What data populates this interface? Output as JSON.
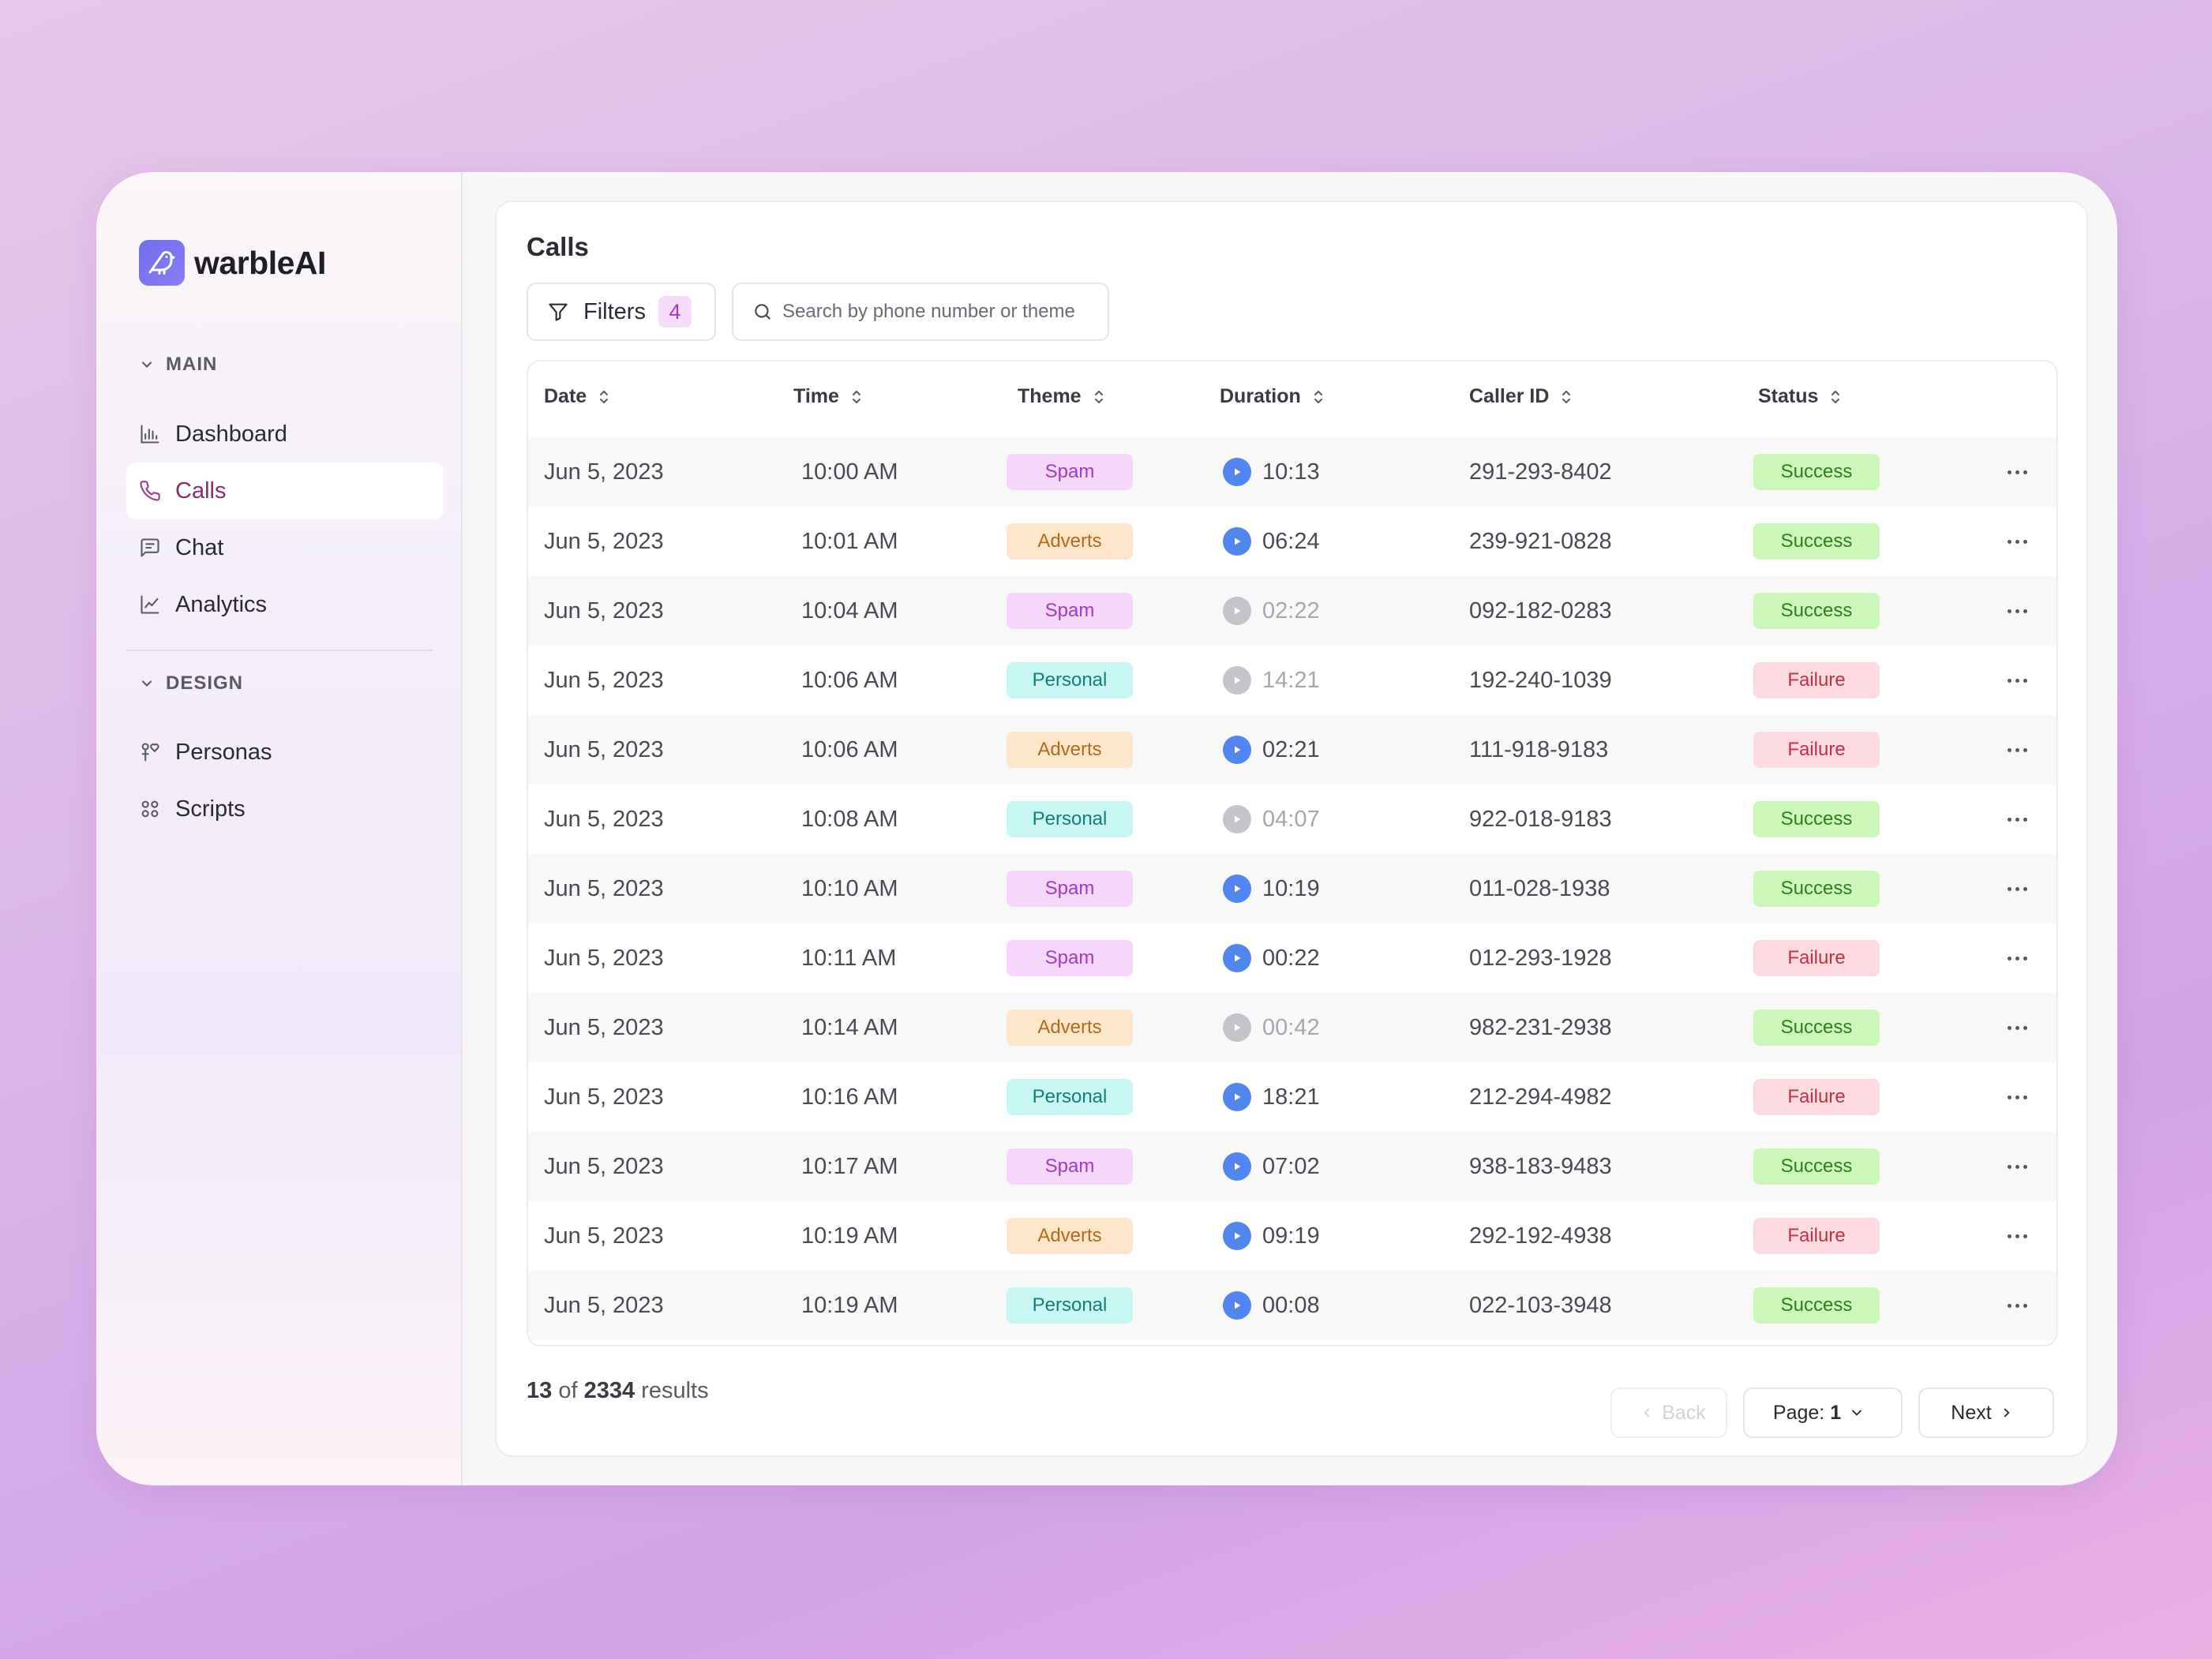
{
  "brand": {
    "name": "warbleAI",
    "accent": "#7a74f2"
  },
  "sidebar": {
    "sections": [
      {
        "label": "MAIN",
        "items": [
          {
            "label": "Dashboard",
            "icon": "bar-chart-icon"
          },
          {
            "label": "Calls",
            "icon": "phone-icon",
            "active": true
          },
          {
            "label": "Chat",
            "icon": "chat-icon"
          },
          {
            "label": "Analytics",
            "icon": "line-chart-icon"
          }
        ]
      },
      {
        "label": "DESIGN",
        "items": [
          {
            "label": "Personas",
            "icon": "personas-icon"
          },
          {
            "label": "Scripts",
            "icon": "scripts-icon"
          }
        ]
      }
    ]
  },
  "page": {
    "title": "Calls"
  },
  "toolbar": {
    "filters_label": "Filters",
    "filters_count": "4",
    "search_placeholder": "Search by phone number or theme"
  },
  "table": {
    "columns": [
      "Date",
      "Time",
      "Theme",
      "Duration",
      "Caller ID",
      "Status"
    ],
    "rows": [
      {
        "date": "Jun 5, 2023",
        "time": "10:00 AM",
        "theme": "Spam",
        "duration": "10:13",
        "playable": true,
        "caller": "291-293-8402",
        "status": "Success"
      },
      {
        "date": "Jun 5, 2023",
        "time": "10:01 AM",
        "theme": "Adverts",
        "duration": "06:24",
        "playable": true,
        "caller": "239-921-0828",
        "status": "Success"
      },
      {
        "date": "Jun 5, 2023",
        "time": "10:04 AM",
        "theme": "Spam",
        "duration": "02:22",
        "playable": false,
        "caller": "092-182-0283",
        "status": "Success"
      },
      {
        "date": "Jun 5, 2023",
        "time": "10:06 AM",
        "theme": "Personal",
        "duration": "14:21",
        "playable": false,
        "caller": "192-240-1039",
        "status": "Failure"
      },
      {
        "date": "Jun 5, 2023",
        "time": "10:06 AM",
        "theme": "Adverts",
        "duration": "02:21",
        "playable": true,
        "caller": "111-918-9183",
        "status": "Failure"
      },
      {
        "date": "Jun 5, 2023",
        "time": "10:08 AM",
        "theme": "Personal",
        "duration": "04:07",
        "playable": false,
        "caller": "922-018-9183",
        "status": "Success"
      },
      {
        "date": "Jun 5, 2023",
        "time": "10:10 AM",
        "theme": "Spam",
        "duration": "10:19",
        "playable": true,
        "caller": "011-028-1938",
        "status": "Success"
      },
      {
        "date": "Jun 5, 2023",
        "time": "10:11 AM",
        "theme": "Spam",
        "duration": "00:22",
        "playable": true,
        "caller": "012-293-1928",
        "status": "Failure"
      },
      {
        "date": "Jun 5, 2023",
        "time": "10:14 AM",
        "theme": "Adverts",
        "duration": "00:42",
        "playable": false,
        "caller": "982-231-2938",
        "status": "Success"
      },
      {
        "date": "Jun 5, 2023",
        "time": "10:16 AM",
        "theme": "Personal",
        "duration": "18:21",
        "playable": true,
        "caller": "212-294-4982",
        "status": "Failure"
      },
      {
        "date": "Jun 5, 2023",
        "time": "10:17 AM",
        "theme": "Spam",
        "duration": "07:02",
        "playable": true,
        "caller": "938-183-9483",
        "status": "Success"
      },
      {
        "date": "Jun 5, 2023",
        "time": "10:19 AM",
        "theme": "Adverts",
        "duration": "09:19",
        "playable": true,
        "caller": "292-192-4938",
        "status": "Failure"
      },
      {
        "date": "Jun 5, 2023",
        "time": "10:19 AM",
        "theme": "Personal",
        "duration": "00:08",
        "playable": true,
        "caller": "022-103-3948",
        "status": "Success"
      }
    ]
  },
  "footer": {
    "shown": "13",
    "of_label": "of",
    "total": "2334",
    "results_label": "results",
    "back_label": "Back",
    "page_label": "Page:",
    "page_value": "1",
    "next_label": "Next"
  },
  "colors": {
    "spam": "#a03cbf",
    "adverts": "#b46a1a",
    "personal": "#127f7a",
    "success": "#2f7d1c",
    "failure": "#c0304a",
    "play": "#4f86f0"
  }
}
